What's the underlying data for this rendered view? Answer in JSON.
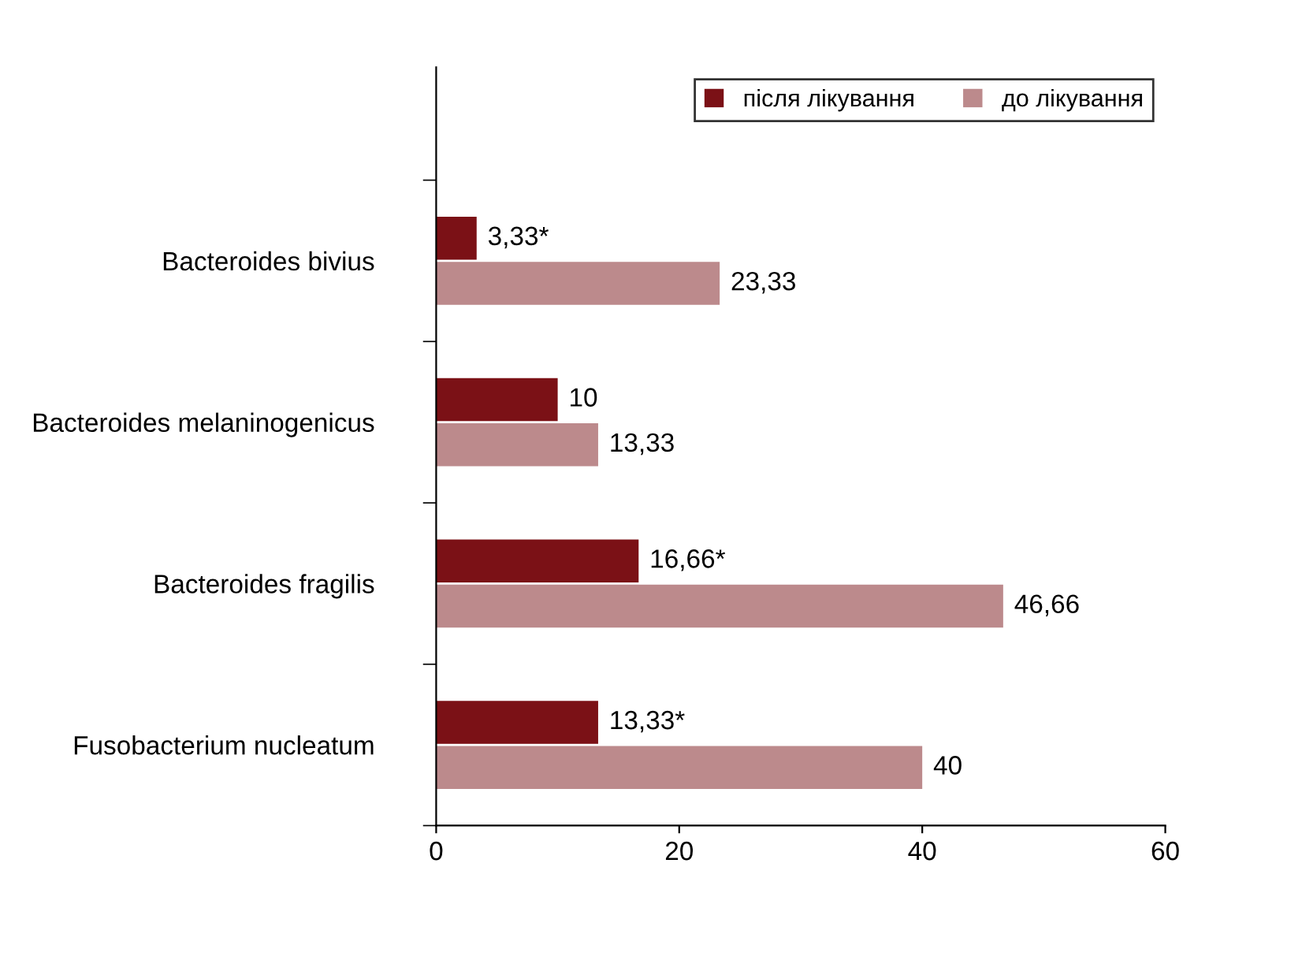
{
  "chart_data": {
    "type": "bar",
    "orientation": "horizontal",
    "categories": [
      "Bacteroides bivius",
      "Bacteroides melaninogenicus",
      "Bacteroides fragilis",
      "Fusobacterium nucleatum"
    ],
    "series": [
      {
        "name": "після лікування",
        "color": "#7b1116",
        "values": [
          3.33,
          10,
          16.66,
          13.33
        ],
        "value_labels": [
          "3,33*",
          "10",
          "16,66*",
          "13,33*"
        ]
      },
      {
        "name": "до лікування",
        "color": "#bc8a8c",
        "values": [
          23.33,
          13.33,
          46.66,
          40
        ],
        "value_labels": [
          "23,33",
          "13,33",
          "46,66",
          "40"
        ]
      }
    ],
    "xlim": [
      0,
      60
    ],
    "xticks": [
      0,
      20,
      40,
      60
    ],
    "legend": "top right",
    "grid": false
  }
}
